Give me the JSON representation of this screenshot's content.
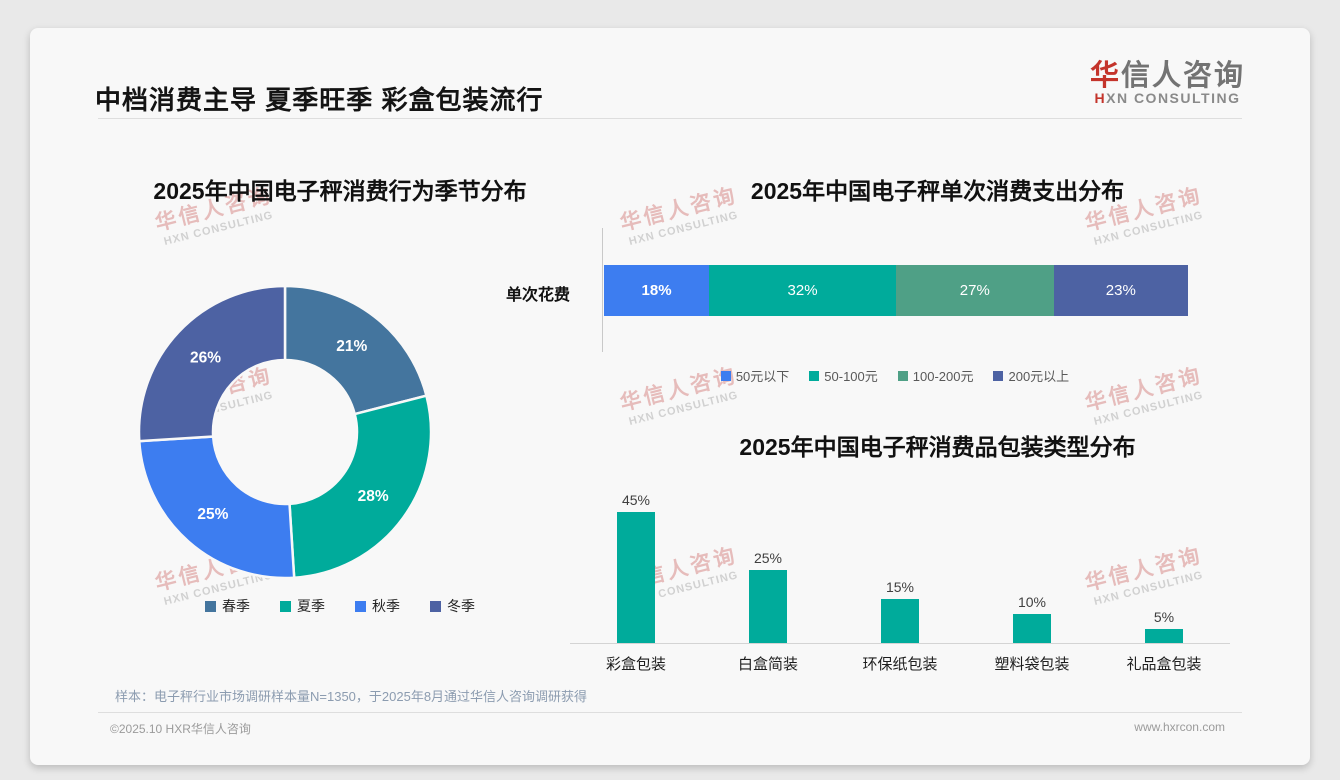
{
  "slide": {
    "title": "中档消费主导 夏季旺季 彩盒包装流行",
    "footnote": "样本：电子秤行业市场调研样本量N=1350，于2025年8月通过华信人咨询调研获得",
    "footer_left": "©2025.10 HXR华信人咨询",
    "footer_right": "www.hxrcon.com"
  },
  "logo": {
    "cn_accent": "华",
    "cn_rest": "信人咨询",
    "en_accent": "H",
    "en_rest": "XN CONSULTING"
  },
  "watermark": {
    "line1": "华信人咨询",
    "line2": "HXN CONSULTING"
  },
  "colors": {
    "steel_blue": "#44759E",
    "teal": "#00AB9B",
    "bright_blue": "#3D7DF0",
    "slate_blue": "#4D62A3",
    "sea_green": "#4FA086"
  },
  "chart_data": [
    {
      "type": "pie",
      "subtype": "donut",
      "title": "2025年中国电子秤消费行为季节分布",
      "categories": [
        "春季",
        "夏季",
        "秋季",
        "冬季"
      ],
      "values": [
        21,
        28,
        25,
        26
      ],
      "labels": [
        "21%",
        "28%",
        "25%",
        "26%"
      ],
      "colors": [
        "#44759E",
        "#00AB9B",
        "#3D7DF0",
        "#4D62A3"
      ],
      "legend_position": "bottom"
    },
    {
      "type": "bar",
      "subtype": "stacked-horizontal",
      "title": "2025年中国电子秤单次消费支出分布",
      "categories": [
        "单次花费"
      ],
      "series": [
        {
          "name": "50元以下",
          "value": 18,
          "label": "18%",
          "color": "#3D7DF0",
          "bold": true
        },
        {
          "name": "50-100元",
          "value": 32,
          "label": "32%",
          "color": "#00AB9B",
          "bold": false
        },
        {
          "name": "100-200元",
          "value": 27,
          "label": "27%",
          "color": "#4FA086",
          "bold": false
        },
        {
          "name": "200元以上",
          "value": 23,
          "label": "23%",
          "color": "#4D62A3",
          "bold": false
        }
      ],
      "legend_position": "bottom"
    },
    {
      "type": "bar",
      "subtype": "column",
      "title": "2025年中国电子秤消费品包装类型分布",
      "categories": [
        "彩盒包装",
        "白盒简装",
        "环保纸包装",
        "塑料袋包装",
        "礼品盒包装"
      ],
      "values": [
        45,
        25,
        15,
        10,
        5
      ],
      "labels": [
        "45%",
        "25%",
        "15%",
        "10%",
        "5%"
      ],
      "color": "#00AB9B",
      "ylim": [
        0,
        50
      ]
    }
  ]
}
